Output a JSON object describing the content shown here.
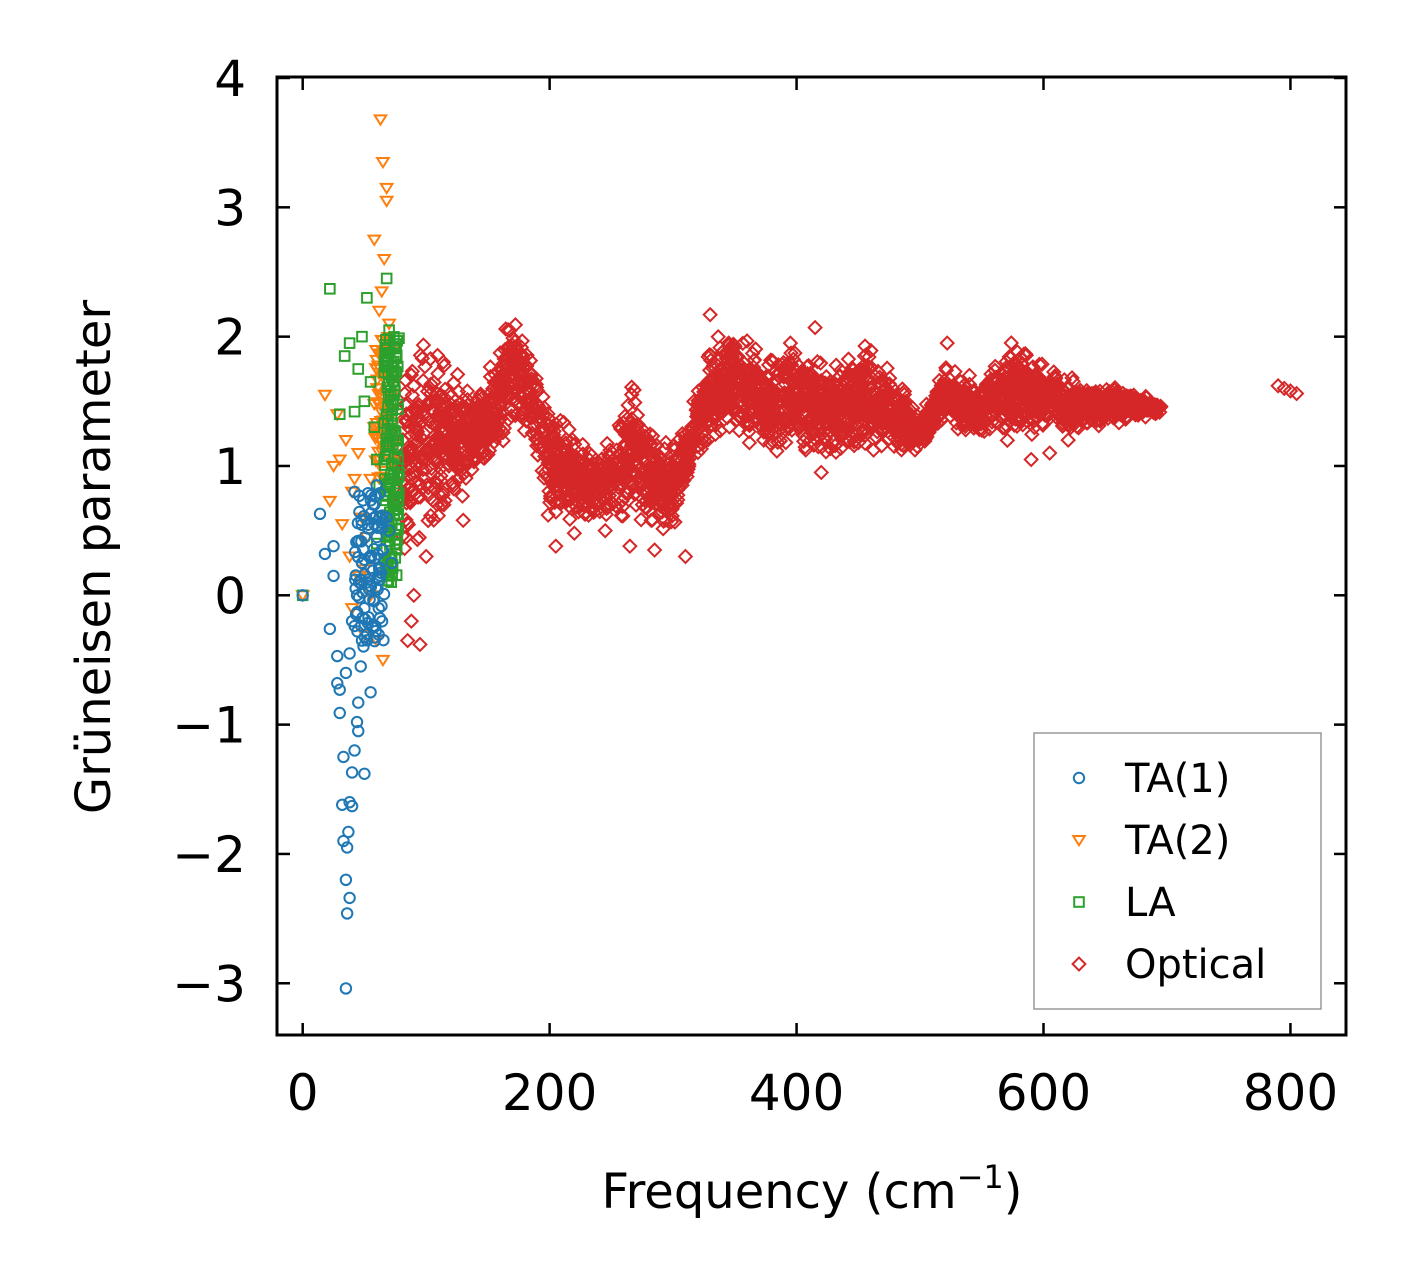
{
  "chart_data": {
    "type": "scatter",
    "xlabel": "Frequency (cm",
    "xlabel_sup": "−1",
    "xlabel_suffix": ")",
    "ylabel": "Grüneisen parameter",
    "xlim": [
      -20,
      845
    ],
    "ylim": [
      -3.4,
      4.0
    ],
    "xticks": [
      0,
      200,
      400,
      600,
      800
    ],
    "xtick_labels": [
      "0",
      "200",
      "400",
      "600",
      "800"
    ],
    "yticks": [
      -3,
      -2,
      -1,
      0,
      1,
      2,
      3,
      4
    ],
    "ytick_labels": [
      "−3",
      "−2",
      "−1",
      "0",
      "1",
      "2",
      "3",
      "4"
    ],
    "legend": {
      "position": "lower-right",
      "labels": [
        "TA(1)",
        "TA(2)",
        "LA",
        "Optical"
      ]
    },
    "series": [
      {
        "name": "TA(1)",
        "marker": "circle",
        "color": "#1f77b4",
        "x": [
          0,
          14,
          18,
          22,
          25,
          28,
          30,
          32,
          33,
          35,
          36,
          37,
          38,
          40,
          42,
          44,
          45,
          47,
          48,
          50,
          52,
          55,
          58,
          60,
          62,
          65,
          68,
          70,
          72,
          40,
          45,
          50,
          38,
          35,
          33,
          36,
          30,
          28,
          25,
          42,
          47,
          52,
          35,
          38,
          40,
          44,
          48,
          55,
          58,
          60
        ],
        "y": [
          0.0,
          0.63,
          0.32,
          -0.26,
          0.15,
          -0.68,
          -0.73,
          -1.62,
          -1.9,
          -2.2,
          -2.46,
          -1.83,
          -1.6,
          -1.37,
          -1.2,
          -0.98,
          -0.83,
          -0.55,
          -0.35,
          -0.1,
          0.1,
          0.3,
          0.55,
          0.45,
          0.2,
          0.35,
          0.6,
          0.5,
          0.25,
          -1.63,
          -1.05,
          -1.38,
          -2.34,
          -3.04,
          -1.25,
          -1.95,
          -0.91,
          -0.47,
          0.38,
          0.8,
          0.12,
          -0.3,
          -0.6,
          -0.45,
          -0.2,
          0.0,
          0.25,
          -0.75,
          0.7,
          0.85
        ]
      },
      {
        "name": "TA(2)",
        "marker": "triangle-down",
        "color": "#ff7f0e",
        "x": [
          0,
          18,
          22,
          25,
          28,
          30,
          32,
          35,
          38,
          40,
          42,
          45,
          48,
          50,
          52,
          55,
          58,
          60,
          62,
          63,
          65,
          66,
          68,
          70,
          72,
          74,
          60,
          65,
          55,
          50,
          45,
          40,
          68,
          64,
          58,
          62
        ],
        "y": [
          0.0,
          1.55,
          0.73,
          1.0,
          1.4,
          1.05,
          0.55,
          1.2,
          0.3,
          0.8,
          0.9,
          1.1,
          0.6,
          0.2,
          0.45,
          0.9,
          1.3,
          1.75,
          2.2,
          3.68,
          3.35,
          2.6,
          3.05,
          2.1,
          1.65,
          1.9,
          -0.35,
          -0.5,
          0.0,
          -0.3,
          0.15,
          -0.1,
          3.15,
          2.35,
          2.75,
          1.6
        ]
      },
      {
        "name": "LA",
        "marker": "square",
        "color": "#2ca02c",
        "x": [
          0,
          22,
          30,
          34,
          38,
          42,
          45,
          48,
          50,
          52,
          55,
          58,
          60,
          62,
          65,
          68,
          70,
          72,
          74,
          76,
          78,
          72,
          70,
          66,
          60
        ],
        "y": [
          0.0,
          2.37,
          1.4,
          1.85,
          1.95,
          1.42,
          1.75,
          2.0,
          1.5,
          2.3,
          1.65,
          1.3,
          1.05,
          0.85,
          0.6,
          2.45,
          2.05,
          1.8,
          1.55,
          1.2,
          0.95,
          0.3,
          0.15,
          1.05,
          0.4
        ]
      },
      {
        "name": "Optical",
        "marker": "diamond",
        "color": "#d62728",
        "band_x": [
          80,
          100,
          120,
          140,
          160,
          170,
          185,
          200,
          220,
          240,
          255,
          265,
          280,
          300,
          310,
          320,
          330,
          350,
          375,
          400,
          425,
          450,
          475,
          500,
          520,
          545,
          575,
          600,
          625,
          650,
          675,
          695
        ],
        "band_upper": [
          1.95,
          2.15,
          1.85,
          1.7,
          1.95,
          2.35,
          2.05,
          1.6,
          1.3,
          1.2,
          1.4,
          1.75,
          1.4,
          1.25,
          1.3,
          1.75,
          2.05,
          2.15,
          1.95,
          2.0,
          1.85,
          2.0,
          1.85,
          1.4,
          1.85,
          1.65,
          2.05,
          1.9,
          1.7,
          1.65,
          1.6,
          1.5
        ],
        "band_lower": [
          0.1,
          0.2,
          0.55,
          0.85,
          1.05,
          1.2,
          1.05,
          0.5,
          0.45,
          0.5,
          0.45,
          0.55,
          0.4,
          0.45,
          0.8,
          1.0,
          1.15,
          1.1,
          1.05,
          1.0,
          1.0,
          1.05,
          1.05,
          1.1,
          1.25,
          1.2,
          1.15,
          1.2,
          1.2,
          1.3,
          1.35,
          1.4
        ],
        "outliers_x": [
          85,
          88,
          90,
          95,
          100,
          112,
          130,
          205,
          220,
          245,
          265,
          285,
          310,
          330,
          345,
          395,
          415,
          420,
          455,
          510,
          522,
          540,
          590,
          605,
          620,
          790,
          795,
          800,
          805
        ],
        "outliers_y": [
          -0.35,
          -0.2,
          0.0,
          -0.38,
          0.3,
          0.7,
          0.58,
          0.38,
          0.48,
          0.5,
          0.38,
          0.35,
          0.3,
          2.17,
          1.95,
          1.95,
          2.07,
          0.95,
          1.85,
          1.35,
          1.95,
          1.7,
          1.05,
          1.1,
          1.2,
          1.62,
          1.6,
          1.58,
          1.56
        ]
      }
    ]
  }
}
